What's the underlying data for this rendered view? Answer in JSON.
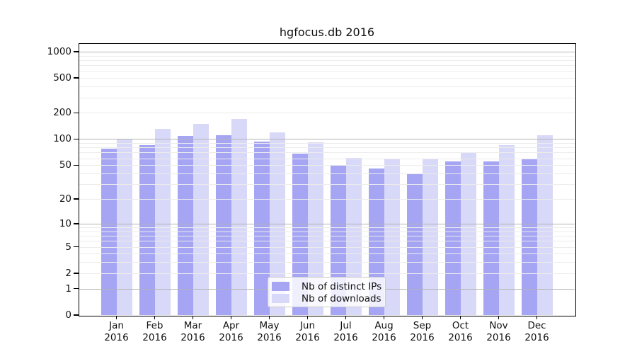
{
  "title": "hgfocus.db 2016",
  "chart_data": {
    "type": "bar",
    "title": "hgfocus.db 2016",
    "categories": [
      "Jan",
      "Feb",
      "Mar",
      "Apr",
      "May",
      "Jun",
      "Jul",
      "Aug",
      "Sep",
      "Oct",
      "Nov",
      "Dec"
    ],
    "year_label": "2016",
    "series": [
      {
        "name": "Nb of distinct IPs",
        "color": "#a5a5f4",
        "values": [
          78,
          85,
          108,
          111,
          94,
          68,
          49,
          46,
          39,
          55,
          55,
          60
        ]
      },
      {
        "name": "Nb of downloads",
        "color": "#d8d8f8",
        "values": [
          100,
          132,
          150,
          170,
          119,
          92,
          61,
          60,
          60,
          69,
          85,
          110
        ]
      }
    ],
    "y_scale": "log1p",
    "y_tick_values": [
      1000,
      500,
      200,
      100,
      50,
      20,
      10,
      5,
      2,
      1,
      0
    ],
    "y_tick_labels": [
      "1000",
      "500",
      "200",
      "100",
      "50",
      "20",
      "10",
      "5",
      "2",
      "1",
      "0"
    ],
    "ylim": [
      0,
      1226
    ],
    "grid": true,
    "legend_position": "bottom-center",
    "colors": {
      "major_gridline": "#b3b3b3",
      "minor_gridline": "#ececec",
      "axis": "#000000",
      "background": "#ffffff"
    }
  }
}
